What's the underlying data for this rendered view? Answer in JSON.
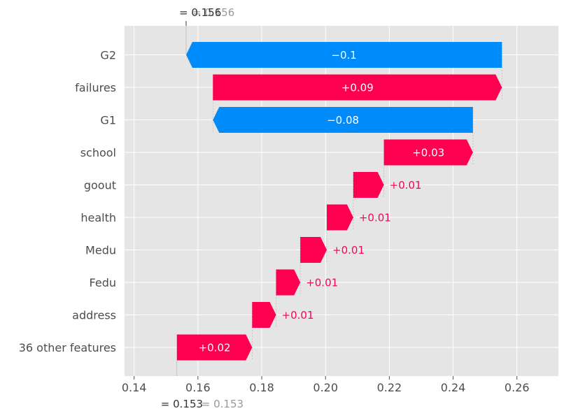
{
  "chart_data": {
    "type": "waterfall",
    "xlim": [
      0.137,
      0.273
    ],
    "x_ticks": [
      {
        "v": 0.14,
        "label": "0.14"
      },
      {
        "v": 0.16,
        "label": "0.16"
      },
      {
        "v": 0.18,
        "label": "0.18"
      },
      {
        "v": 0.2,
        "label": "0.20"
      },
      {
        "v": 0.22,
        "label": "0.22"
      },
      {
        "v": 0.24,
        "label": "0.24"
      },
      {
        "v": 0.26,
        "label": "0.26"
      }
    ],
    "grid": true,
    "colors": {
      "positive": "#ff0051",
      "negative": "#008bfb",
      "background": "#e5e5e5",
      "grid": "#ffffff",
      "text": "#4d4d4d",
      "muted": "#999999"
    },
    "features": [
      {
        "name": "G2",
        "start": 0.2553,
        "end": 0.1563,
        "label": "−0.1"
      },
      {
        "name": "failures",
        "start": 0.1647,
        "end": 0.2553,
        "label": "+0.09"
      },
      {
        "name": "G1",
        "start": 0.2462,
        "end": 0.1647,
        "label": "−0.08"
      },
      {
        "name": "school",
        "start": 0.2183,
        "end": 0.2462,
        "label": "+0.03"
      },
      {
        "name": "goout",
        "start": 0.2087,
        "end": 0.2183,
        "label": "+0.01"
      },
      {
        "name": "health",
        "start": 0.2004,
        "end": 0.2087,
        "label": "+0.01"
      },
      {
        "name": "Medu",
        "start": 0.1921,
        "end": 0.2004,
        "label": "+0.01"
      },
      {
        "name": "Fedu",
        "start": 0.1845,
        "end": 0.1921,
        "label": "+0.01"
      },
      {
        "name": "address",
        "start": 0.177,
        "end": 0.1845,
        "label": "+0.01"
      },
      {
        "name": "36 other features",
        "start": 0.1534,
        "end": 0.177,
        "label": "+0.02"
      }
    ],
    "fx": {
      "value": 0.1563,
      "prefix": "= ",
      "label_a": "0.156",
      "label_b": "0.156"
    },
    "expected": {
      "value": 0.1534,
      "prefix": "= ",
      "label_a": "0.153",
      "label_b": "0.153"
    }
  }
}
